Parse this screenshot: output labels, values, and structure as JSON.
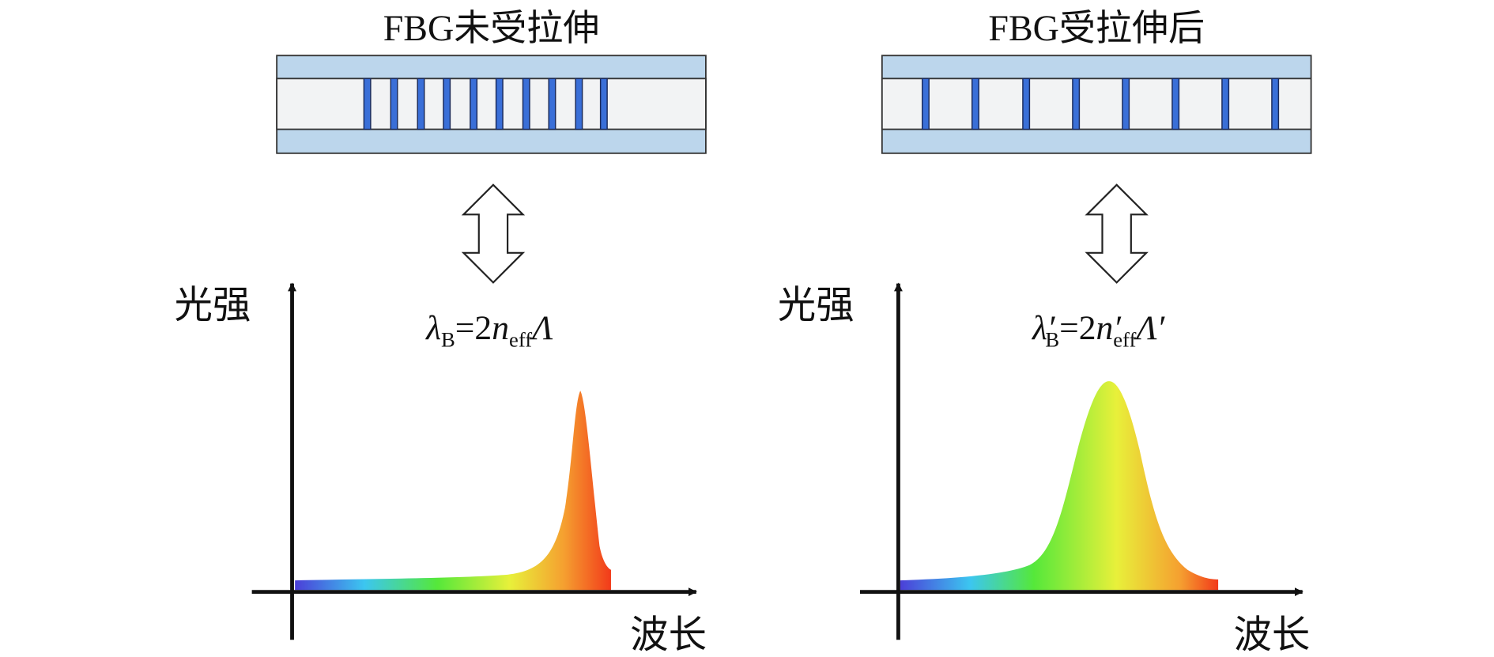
{
  "panels": [
    {
      "title": "FBG未受拉伸",
      "y_label": "光强",
      "x_label": "波长",
      "formula": {
        "lambda": "λ",
        "sub_b": "B",
        "eq": "=2",
        "n": "n",
        "sub_eff": "eff",
        "Lambda": "Λ"
      }
    },
    {
      "title": "FBG受拉伸后",
      "y_label": "光强",
      "x_label": "波长",
      "formula": {
        "lambda": "λ′",
        "sub_b": "B",
        "eq": "=2",
        "n": "n′",
        "sub_eff": "eff",
        "Lambda": "Λ′"
      }
    }
  ]
}
